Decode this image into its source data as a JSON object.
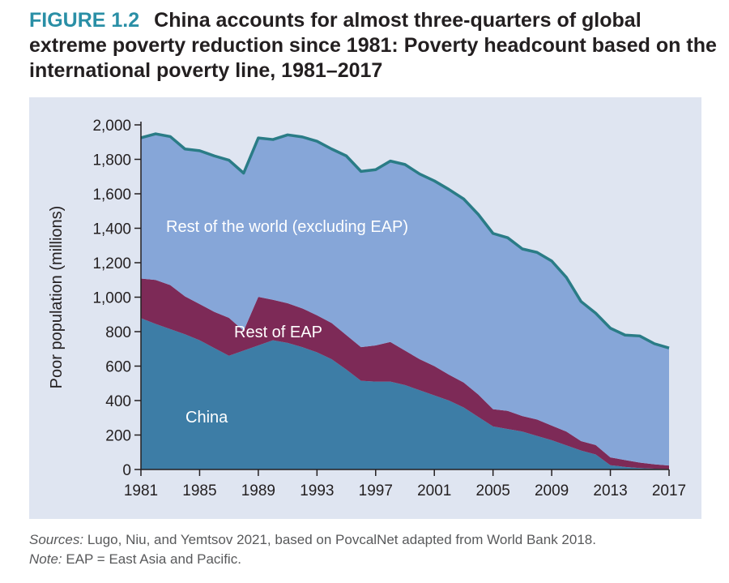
{
  "figure": {
    "label": "FIGURE 1.2",
    "title": "China accounts for almost three-quarters of global extreme poverty reduction since 1981: Poverty headcount based on the international poverty line, 1981–2017"
  },
  "footer": {
    "sources_label": "Sources:",
    "sources_text": " Lugo, Niu, and Yemtsov 2021, based on PovcalNet adapted from World Bank 2018.",
    "note_label": "Note:",
    "note_text": " EAP = East Asia and Pacific."
  },
  "colors": {
    "china": "#3d7da6",
    "rest_eap": "#7d2a57",
    "rest_world": "#86a6d8",
    "total_line": "#2a7c86",
    "panel_bg": "#dfe5f1",
    "accent": "#2a8fa6"
  },
  "chart_data": {
    "type": "area",
    "stacked": true,
    "ylabel": "Poor population (millions)",
    "xlabel": "",
    "ylim": [
      0,
      2000
    ],
    "xlim": [
      1981,
      2017
    ],
    "yticks": [
      0,
      200,
      400,
      600,
      800,
      1000,
      1200,
      1400,
      1600,
      1800,
      2000
    ],
    "ytick_labels": [
      "0",
      "200",
      "400",
      "600",
      "800",
      "1,000",
      "1,200",
      "1,400",
      "1,600",
      "1,800",
      "2,000"
    ],
    "xticks": [
      1981,
      1985,
      1989,
      1993,
      1997,
      2001,
      2005,
      2009,
      2013,
      2017
    ],
    "xtick_labels": [
      "1981",
      "1985",
      "1989",
      "1993",
      "1997",
      "2001",
      "2005",
      "2009",
      "2013",
      "2017"
    ],
    "x": [
      1981,
      1982,
      1983,
      1984,
      1985,
      1986,
      1987,
      1988,
      1989,
      1990,
      1991,
      1992,
      1993,
      1994,
      1995,
      1996,
      1997,
      1998,
      1999,
      2000,
      2001,
      2002,
      2003,
      2004,
      2005,
      2006,
      2007,
      2008,
      2009,
      2010,
      2011,
      2012,
      2013,
      2014,
      2015,
      2016,
      2017
    ],
    "series": [
      {
        "name": "China",
        "label": "China",
        "values": [
          878,
          845,
          815,
          785,
          750,
          705,
          660,
          690,
          720,
          750,
          735,
          710,
          680,
          640,
          580,
          515,
          510,
          510,
          490,
          460,
          430,
          400,
          360,
          305,
          250,
          235,
          220,
          195,
          170,
          140,
          110,
          87,
          25,
          15,
          8,
          5,
          3
        ]
      },
      {
        "name": "Rest of EAP",
        "label": "Rest of EAP",
        "values": [
          230,
          255,
          255,
          220,
          210,
          210,
          220,
          115,
          282,
          235,
          230,
          225,
          215,
          210,
          200,
          195,
          210,
          230,
          200,
          180,
          170,
          150,
          145,
          130,
          100,
          105,
          90,
          95,
          85,
          80,
          55,
          55,
          45,
          40,
          32,
          25,
          20
        ]
      },
      {
        "name": "Rest of the world (excluding EAP)",
        "label": "Rest of the  world (excluding EAP)",
        "values": [
          817,
          848,
          862,
          855,
          890,
          905,
          915,
          915,
          922,
          930,
          977,
          995,
          1010,
          1010,
          1040,
          1020,
          1020,
          1050,
          1080,
          1075,
          1075,
          1075,
          1065,
          1045,
          1020,
          1005,
          970,
          970,
          955,
          895,
          810,
          765,
          750,
          725,
          735,
          700,
          682
        ]
      }
    ],
    "total_line_name": "Total"
  }
}
